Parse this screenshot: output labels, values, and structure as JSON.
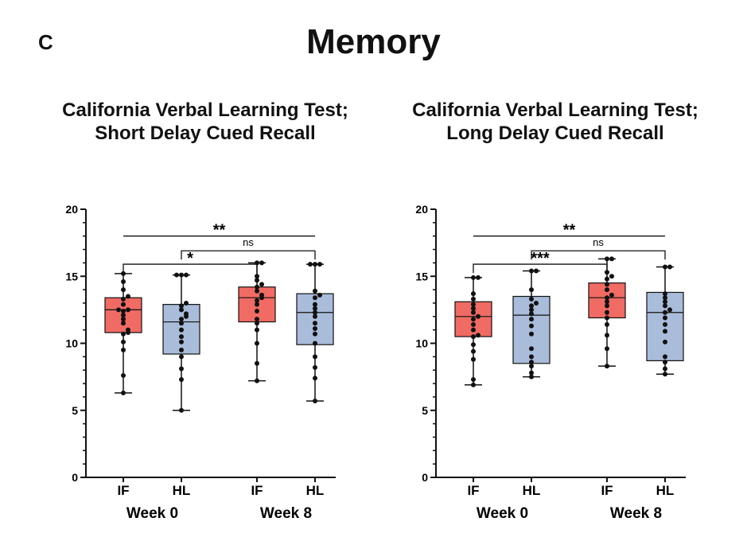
{
  "panel_label": "C",
  "title": "Memory",
  "colors": {
    "IF": "#f06b63",
    "HL": "#a9bcd9",
    "dot": "#111111",
    "stroke": "#111111"
  },
  "chart_data": [
    {
      "type": "box",
      "title": [
        "California Verbal Learning Test;",
        "Short Delay Cued Recall"
      ],
      "ylim": [
        0,
        20
      ],
      "yticks": [
        0,
        5,
        10,
        15,
        20
      ],
      "categories": [
        "IF",
        "HL",
        "IF",
        "HL"
      ],
      "groups": [
        "Week 0",
        "Week 8"
      ],
      "boxes": [
        {
          "label": "IF",
          "group": "Week 0",
          "min": 6.3,
          "q1": 10.8,
          "median": 12.5,
          "q3": 13.4,
          "max": 15.2,
          "points": [
            6.3,
            7.6,
            9.5,
            10.1,
            10.7,
            10.8,
            11.0,
            11.5,
            11.8,
            12.1,
            12.4,
            12.5,
            12.5,
            12.9,
            13.3,
            13.5,
            14.0,
            14.6,
            15.2
          ]
        },
        {
          "label": "HL",
          "group": "Week 0",
          "min": 5.0,
          "q1": 9.2,
          "median": 11.6,
          "q3": 12.9,
          "max": 15.1,
          "points": [
            5.0,
            7.3,
            8.1,
            9.0,
            9.5,
            10.1,
            10.5,
            11.0,
            11.5,
            11.8,
            12.0,
            12.2,
            12.5,
            12.8,
            13.0,
            15.1,
            15.1,
            15.1
          ]
        },
        {
          "label": "IF",
          "group": "Week 8",
          "min": 7.2,
          "q1": 11.6,
          "median": 13.4,
          "q3": 14.2,
          "max": 16.0,
          "points": [
            7.2,
            8.5,
            10.0,
            11.0,
            11.5,
            11.8,
            12.4,
            12.9,
            13.2,
            13.4,
            13.6,
            13.9,
            14.2,
            14.4,
            14.7,
            15.0,
            16.0,
            16.0
          ]
        },
        {
          "label": "HL",
          "group": "Week 8",
          "min": 5.7,
          "q1": 9.9,
          "median": 12.3,
          "q3": 13.7,
          "max": 15.9,
          "points": [
            5.7,
            7.4,
            8.2,
            9.0,
            10.0,
            10.7,
            11.1,
            11.5,
            12.0,
            12.3,
            12.6,
            12.9,
            13.4,
            13.6,
            13.9,
            15.9,
            15.9,
            15.9
          ]
        }
      ],
      "significance": [
        {
          "from": 0,
          "to": 3,
          "level": 18.0,
          "label": "**"
        },
        {
          "from": 1,
          "to": 3,
          "level": 16.9,
          "label": "ns"
        },
        {
          "from": 0,
          "to": 2,
          "level": 15.9,
          "label": "*"
        }
      ]
    },
    {
      "type": "box",
      "title": [
        "California Verbal Learning Test;",
        "Long Delay Cued Recall"
      ],
      "ylim": [
        0,
        20
      ],
      "yticks": [
        0,
        5,
        10,
        15,
        20
      ],
      "categories": [
        "IF",
        "HL",
        "IF",
        "HL"
      ],
      "groups": [
        "Week 0",
        "Week 8"
      ],
      "boxes": [
        {
          "label": "IF",
          "group": "Week 0",
          "min": 6.9,
          "q1": 10.5,
          "median": 12.0,
          "q3": 13.1,
          "max": 14.9,
          "points": [
            6.9,
            7.3,
            8.8,
            9.4,
            9.9,
            10.5,
            10.6,
            11.0,
            11.4,
            11.8,
            12.0,
            12.3,
            12.6,
            12.9,
            13.3,
            13.7,
            14.9,
            14.9
          ]
        },
        {
          "label": "HL",
          "group": "Week 0",
          "min": 7.5,
          "q1": 8.5,
          "median": 12.1,
          "q3": 13.5,
          "max": 15.4,
          "points": [
            7.5,
            7.8,
            8.3,
            8.6,
            9.0,
            9.6,
            10.7,
            11.3,
            11.8,
            12.2,
            12.5,
            12.8,
            13.0,
            13.3,
            14.0,
            15.4,
            15.4
          ]
        },
        {
          "label": "IF",
          "group": "Week 8",
          "min": 8.3,
          "q1": 11.9,
          "median": 13.4,
          "q3": 14.5,
          "max": 16.3,
          "points": [
            8.3,
            9.6,
            10.6,
            11.4,
            11.9,
            12.3,
            12.8,
            13.1,
            13.4,
            13.6,
            14.0,
            14.4,
            14.8,
            15.0,
            15.3,
            16.3,
            16.3
          ]
        },
        {
          "label": "HL",
          "group": "Week 8",
          "min": 7.7,
          "q1": 8.7,
          "median": 12.3,
          "q3": 13.8,
          "max": 15.7,
          "points": [
            7.7,
            8.1,
            8.6,
            9.0,
            10.1,
            10.9,
            11.4,
            11.9,
            12.3,
            12.5,
            12.8,
            13.1,
            13.4,
            13.7,
            15.7,
            15.7
          ]
        }
      ],
      "significance": [
        {
          "from": 0,
          "to": 3,
          "level": 18.0,
          "label": "**"
        },
        {
          "from": 1,
          "to": 3,
          "level": 16.9,
          "label": "ns"
        },
        {
          "from": 0,
          "to": 2,
          "level": 15.9,
          "label": "***"
        }
      ]
    }
  ]
}
